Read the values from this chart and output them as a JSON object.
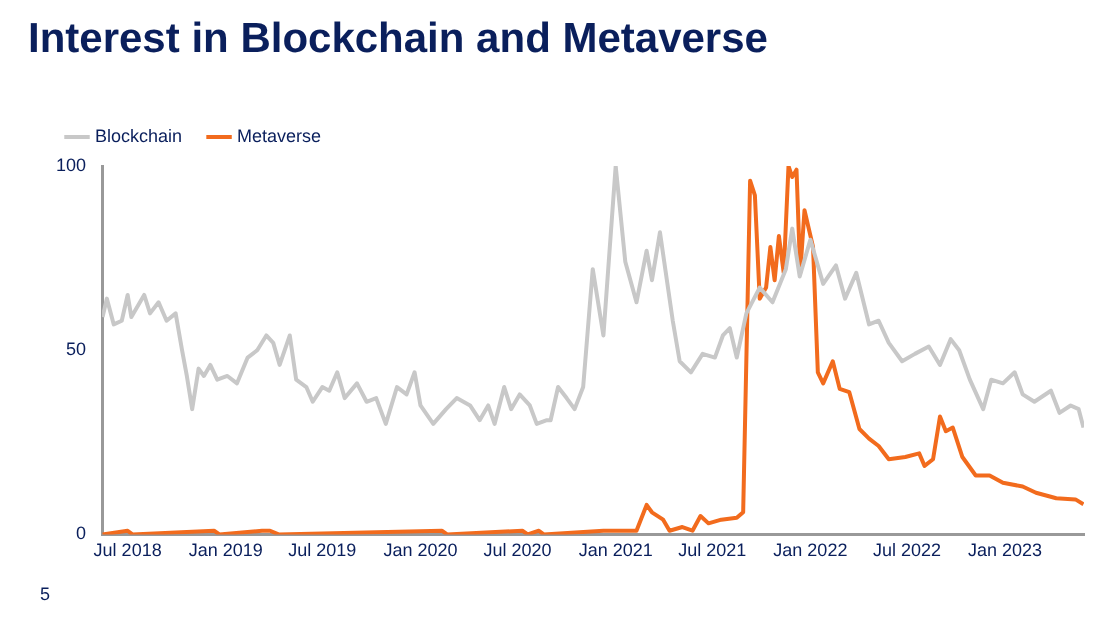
{
  "chart_data": {
    "type": "line",
    "title": "Interest in Blockchain and Metaverse",
    "xlim": [
      "2018-05-14",
      "2023-05-29"
    ],
    "xticks": [
      {
        "value": "2018-07",
        "label": "Jul 2018"
      },
      {
        "value": "2019-01",
        "label": "Jan 2019"
      },
      {
        "value": "2019-07",
        "label": "Jul 2019"
      },
      {
        "value": "2020-01",
        "label": "Jan 2020"
      },
      {
        "value": "2020-07",
        "label": "Jul 2020"
      },
      {
        "value": "2021-01",
        "label": "Jan 2021"
      },
      {
        "value": "2021-07",
        "label": "Jul 2021"
      },
      {
        "value": "2022-01",
        "label": "Jan 2022"
      },
      {
        "value": "2022-07",
        "label": "Jul 2022"
      },
      {
        "value": "2023-01",
        "label": "Jan 2023"
      }
    ],
    "ylim": [
      0,
      100
    ],
    "yticks": [
      0,
      50,
      100
    ],
    "grid": false,
    "legend": "top left",
    "marker": "none",
    "line_style": "solid",
    "annotations": [
      "5"
    ],
    "series": [
      {
        "name": "Blockchain",
        "color": "#c8c8c8",
        "x": [
          "2018-05-15",
          "2018-05-23",
          "2018-06-05",
          "2018-06-20",
          "2018-07-01",
          "2018-07-08",
          "2018-08-01",
          "2018-08-12",
          "2018-08-28",
          "2018-09-12",
          "2018-09-29",
          "2018-10-11",
          "2018-10-20",
          "2018-10-30",
          "2018-11-11",
          "2018-11-21",
          "2018-12-03",
          "2018-12-16",
          "2019-01-04",
          "2019-01-22",
          "2019-02-11",
          "2019-03-01",
          "2019-03-18",
          "2019-03-31",
          "2019-04-12",
          "2019-05-01",
          "2019-05-13",
          "2019-06-01",
          "2019-06-13",
          "2019-07-01",
          "2019-07-14",
          "2019-07-29",
          "2019-08-12",
          "2019-09-04",
          "2019-09-22",
          "2019-10-10",
          "2019-10-28",
          "2019-11-18",
          "2019-12-06",
          "2019-12-21",
          "2020-01-01",
          "2020-01-25",
          "2020-02-18",
          "2020-03-09",
          "2020-04-03",
          "2020-04-21",
          "2020-05-07",
          "2020-05-19",
          "2020-06-06",
          "2020-06-19",
          "2020-07-05",
          "2020-07-24",
          "2020-08-06",
          "2020-08-25",
          "2020-09-01",
          "2020-09-15",
          "2020-10-01",
          "2020-10-16",
          "2020-11-01",
          "2020-11-19",
          "2020-12-09",
          "2021-01-01",
          "2021-01-19",
          "2021-02-09",
          "2021-02-28",
          "2021-03-10",
          "2021-03-25",
          "2021-04-18",
          "2021-05-01",
          "2021-05-22",
          "2021-06-13",
          "2021-07-06",
          "2021-07-21",
          "2021-08-03",
          "2021-08-16",
          "2021-09-03",
          "2021-09-28",
          "2021-10-22",
          "2021-11-16",
          "2021-11-28",
          "2021-12-12",
          "2022-01-01",
          "2022-01-25",
          "2022-02-18",
          "2022-03-07",
          "2022-03-28",
          "2022-04-21",
          "2022-05-09",
          "2022-05-28",
          "2022-06-22",
          "2022-07-16",
          "2022-08-11",
          "2022-09-01",
          "2022-09-21",
          "2022-10-07",
          "2022-10-27",
          "2022-11-21",
          "2022-12-06",
          "2022-12-28",
          "2023-01-19",
          "2023-02-03",
          "2023-02-25",
          "2023-03-28",
          "2023-04-13",
          "2023-05-04",
          "2023-05-19",
          "2023-05-28"
        ],
        "values": [
          59,
          64,
          57,
          58,
          65,
          59,
          65,
          60,
          63,
          58,
          60,
          50,
          43,
          34,
          45,
          43,
          46,
          42,
          43,
          41,
          48,
          50,
          54,
          52,
          46,
          54,
          42,
          40,
          36,
          40,
          39,
          44,
          37,
          41,
          36,
          37,
          30,
          40,
          38,
          44,
          35,
          30,
          34,
          37,
          35,
          31,
          35,
          30,
          40,
          34,
          38,
          35,
          30,
          31,
          31,
          40,
          37,
          34,
          40,
          72,
          54,
          100,
          74,
          63,
          77,
          69,
          82,
          58,
          47,
          44,
          49,
          48,
          54,
          56,
          48,
          60,
          67,
          63,
          72,
          83,
          70,
          80,
          68,
          73,
          64,
          71,
          57,
          58,
          52,
          47,
          49,
          51,
          46,
          53,
          50,
          42,
          34,
          42,
          41,
          44,
          38,
          36,
          39,
          33,
          35,
          34,
          29
        ]
      },
      {
        "name": "Metaverse",
        "color": "#f26b1d",
        "x": [
          "2018-05-15",
          "2018-07-01",
          "2018-07-10",
          "2018-12-10",
          "2018-12-20",
          "2019-03-10",
          "2019-03-25",
          "2019-04-10",
          "2020-02-10",
          "2020-02-20",
          "2020-07-10",
          "2020-07-20",
          "2020-08-10",
          "2020-08-19",
          "2020-12-09",
          "2021-02-09",
          "2021-02-28",
          "2021-03-10",
          "2021-03-31",
          "2021-04-12",
          "2021-05-06",
          "2021-05-25",
          "2021-06-09",
          "2021-06-24",
          "2021-07-18",
          "2021-08-16",
          "2021-08-28",
          "2021-09-10",
          "2021-09-19",
          "2021-09-28",
          "2021-10-10",
          "2021-10-18",
          "2021-10-26",
          "2021-11-03",
          "2021-11-12",
          "2021-11-21",
          "2021-11-28",
          "2021-12-06",
          "2021-12-13",
          "2021-12-21",
          "2022-01-06",
          "2022-01-15",
          "2022-01-25",
          "2022-02-12",
          "2022-02-25",
          "2022-03-15",
          "2022-04-03",
          "2022-04-21",
          "2022-05-09",
          "2022-05-28",
          "2022-06-28",
          "2022-07-24",
          "2022-08-03",
          "2022-08-19",
          "2022-09-01",
          "2022-09-12",
          "2022-09-25",
          "2022-10-13",
          "2022-11-07",
          "2022-12-03",
          "2022-12-28",
          "2023-02-03",
          "2023-02-28",
          "2023-04-07",
          "2023-05-13",
          "2023-05-28"
        ],
        "values": [
          0,
          1,
          0,
          1,
          0,
          1,
          1,
          0,
          1,
          0,
          1,
          0,
          1,
          0,
          1,
          1,
          8,
          6,
          4,
          1,
          2,
          1,
          5,
          3,
          4,
          4.5,
          6,
          96,
          92,
          64,
          67,
          78,
          69,
          81,
          71,
          100,
          97,
          99,
          71,
          88,
          78,
          44,
          41,
          47,
          39.5,
          38.6,
          28.6,
          26,
          24,
          20.4,
          21,
          22,
          18.6,
          20.4,
          32,
          28,
          29,
          21,
          16,
          16,
          14,
          13,
          11.3,
          9.8,
          9.5,
          8.2
        ]
      }
    ]
  }
}
